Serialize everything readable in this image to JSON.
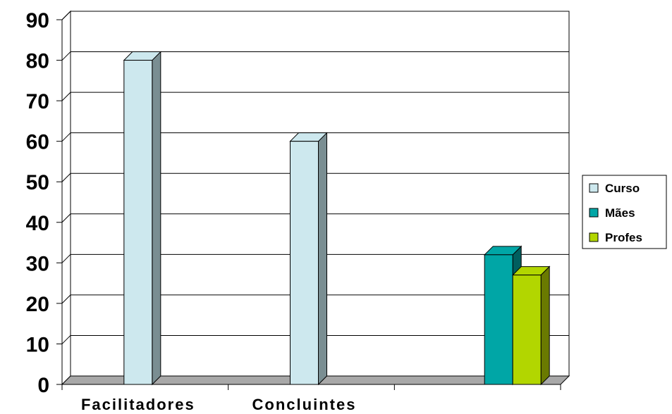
{
  "chart_data": {
    "type": "bar",
    "style": "3d-clustered-column",
    "categories": [
      "Facilitadores",
      "Concluintes",
      ""
    ],
    "series": [
      {
        "name": "Curso",
        "values": [
          80,
          60,
          null
        ],
        "color": "#cde8ee",
        "side_color": "#7a8e92"
      },
      {
        "name": "Mães",
        "values": [
          null,
          null,
          32
        ],
        "color": "#00a6a6",
        "side_color": "#005e5e"
      },
      {
        "name": "Profes",
        "values": [
          null,
          null,
          27
        ],
        "color": "#b2d600",
        "side_color": "#6a7a00"
      }
    ],
    "ylim": [
      0,
      90
    ],
    "yticks": [
      "0",
      "10",
      "20",
      "30",
      "40",
      "50",
      "60",
      "70",
      "80",
      "90"
    ],
    "grid": true,
    "legend_position": "right",
    "title": "",
    "xlabel": "",
    "ylabel": ""
  }
}
